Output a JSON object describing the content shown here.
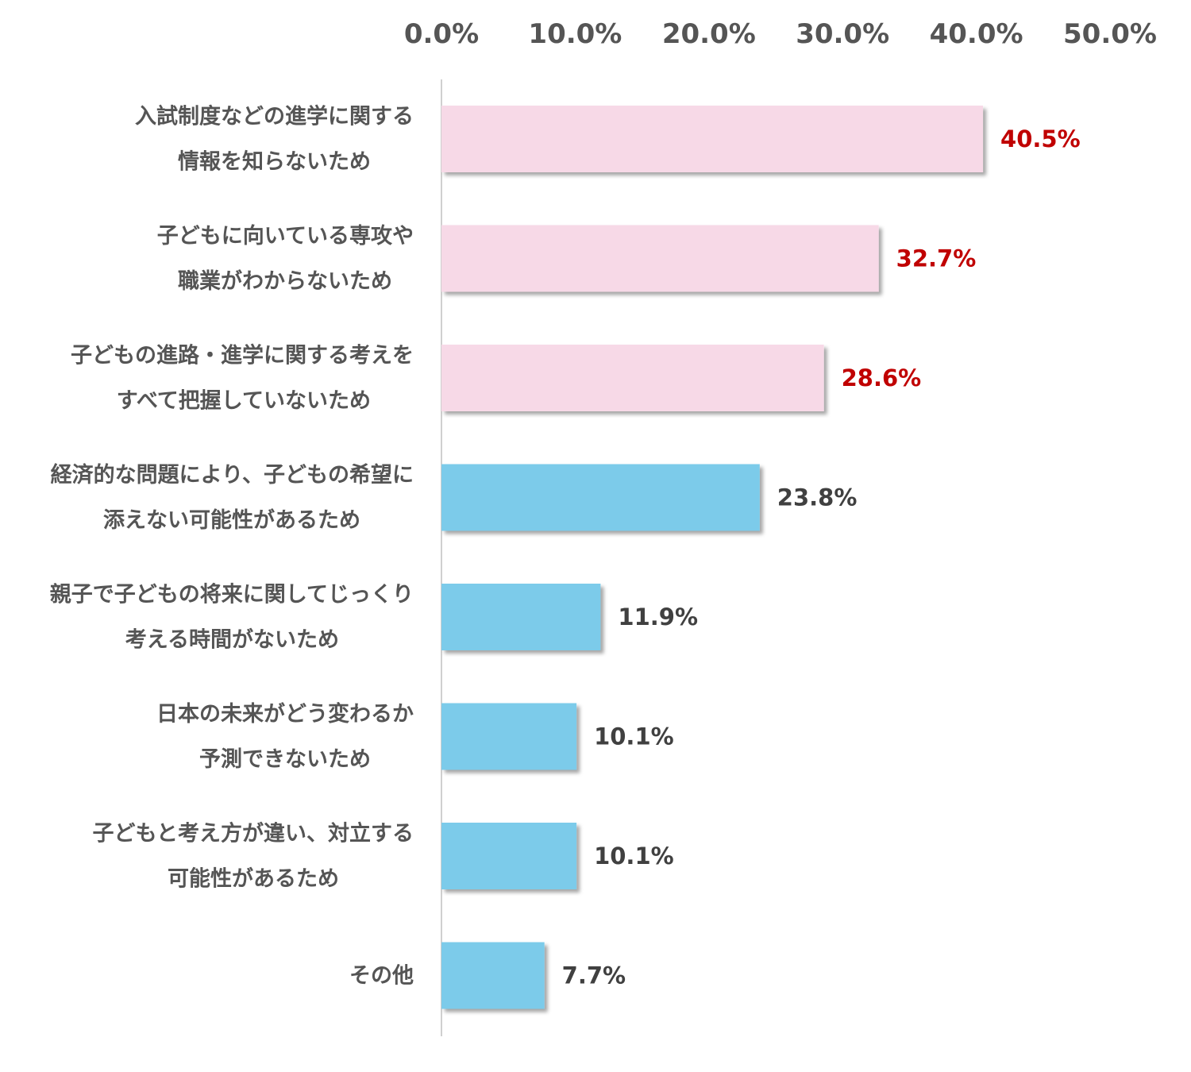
{
  "chart_data": {
    "type": "bar",
    "orientation": "horizontal",
    "x_ticks": [
      "0.0%",
      "10.0%",
      "20.0%",
      "30.0%",
      "40.0%",
      "50.0%"
    ],
    "xlim": [
      0,
      50
    ],
    "grid": false,
    "categories": [
      [
        "入試制度などの進学に関する",
        "情報を知らないため"
      ],
      [
        "子どもに向いている専攻や",
        "職業がわからないため"
      ],
      [
        "子どもの進路・進学に関する考えを",
        "すべて把握していないため"
      ],
      [
        "経済的な問題により、子どもの希望に",
        "添えない可能性があるため"
      ],
      [
        "親子で子どもの将来に関してじっくり",
        "考える時間がないため"
      ],
      [
        "日本の未来がどう変わるか",
        "予測できないため"
      ],
      [
        "子どもと考え方が違い、対立する",
        "可能性があるため"
      ],
      [
        "その他"
      ]
    ],
    "values": [
      40.5,
      32.7,
      28.6,
      23.8,
      11.9,
      10.1,
      10.1,
      7.7
    ],
    "value_labels": [
      "40.5%",
      "32.7%",
      "28.6%",
      "23.8%",
      "11.9%",
      "10.1%",
      "10.1%",
      "7.7%"
    ],
    "highlighted": [
      true,
      true,
      true,
      false,
      false,
      false,
      false,
      false
    ],
    "colors": {
      "highlight_bar": "#f7d9e7",
      "normal_bar": "#7bcbea",
      "highlight_label": "#c00000",
      "normal_label": "#404040",
      "text": "#555555",
      "axis": "#d0d0d0"
    }
  }
}
